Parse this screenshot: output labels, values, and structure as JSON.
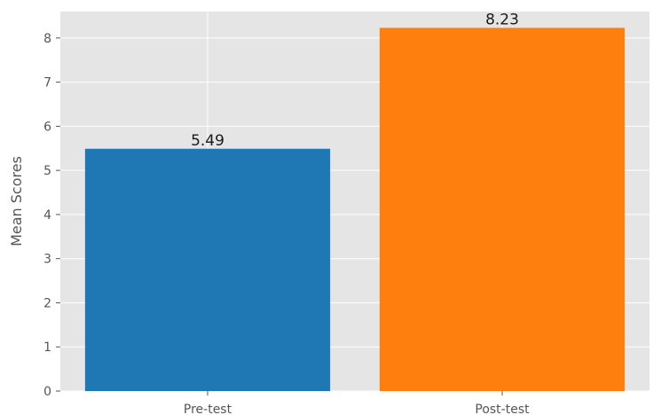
{
  "chart_data": {
    "type": "bar",
    "title": "",
    "xlabel": "",
    "ylabel": "Mean Scores",
    "categories": [
      "Pre-test",
      "Post-test"
    ],
    "values": [
      5.49,
      8.23
    ],
    "data_labels": [
      "5.49",
      "8.23"
    ],
    "bar_colors": [
      "#1f77b4",
      "#ff7f0e"
    ],
    "ylim": [
      0,
      8.6
    ],
    "yticks": [
      0,
      1,
      2,
      3,
      4,
      5,
      6,
      7,
      8
    ],
    "grid": true,
    "style": {
      "plot_background": "#e5e5e5",
      "grid_color": "#ffffff",
      "tick_color": "#555555"
    }
  }
}
